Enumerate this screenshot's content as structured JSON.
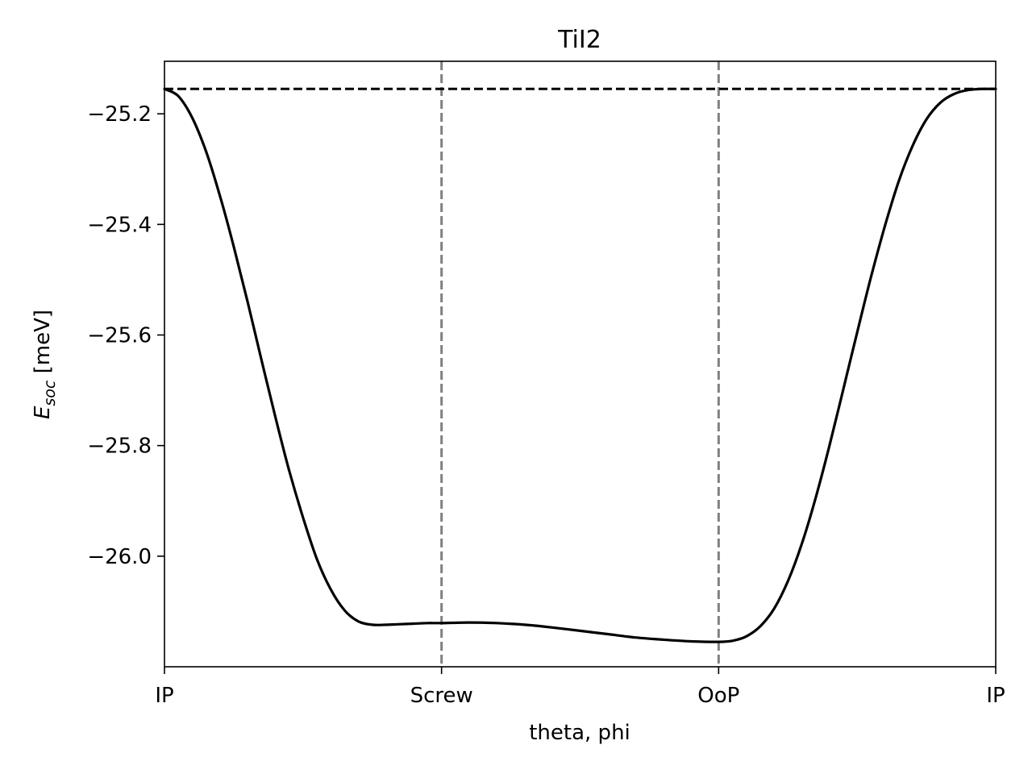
{
  "chart_data": {
    "type": "line",
    "title": "TiI2",
    "xlabel": "theta, phi",
    "ylabel_main": "E",
    "ylabel_sub": "soc",
    "ylabel_unit": " [meV]",
    "xlim": [
      0,
      3
    ],
    "ylim": [
      -26.2,
      -25.105
    ],
    "xticks": [
      {
        "value": 0,
        "label": "IP"
      },
      {
        "value": 1,
        "label": "Screw"
      },
      {
        "value": 2,
        "label": "OoP"
      },
      {
        "value": 3,
        "label": "IP"
      }
    ],
    "yticks": [
      {
        "value": -25.2,
        "label": "−25.2"
      },
      {
        "value": -25.4,
        "label": "−25.4"
      },
      {
        "value": -25.6,
        "label": "−25.6"
      },
      {
        "value": -25.8,
        "label": "−25.8"
      },
      {
        "value": -26.0,
        "label": "−26.0"
      }
    ],
    "reference_line": {
      "y": -25.155,
      "color": "#000000",
      "style": "dashed"
    },
    "vertical_lines": [
      {
        "x": 1,
        "color": "#808080",
        "style": "dashed"
      },
      {
        "x": 2,
        "color": "#808080",
        "style": "dashed"
      }
    ],
    "series": [
      {
        "color": "#000000",
        "x": [
          0,
          0.05,
          0.1,
          0.15,
          0.2,
          0.25,
          0.3,
          0.35,
          0.4,
          0.45,
          0.5,
          0.55,
          0.6,
          0.65,
          0.7,
          0.75,
          0.8,
          0.85,
          0.9,
          0.95,
          1.0,
          1.1,
          1.2,
          1.3,
          1.4,
          1.5,
          1.6,
          1.7,
          1.8,
          1.9,
          2.0,
          2.05,
          2.1,
          2.15,
          2.2,
          2.25,
          2.3,
          2.35,
          2.4,
          2.45,
          2.5,
          2.55,
          2.6,
          2.65,
          2.7,
          2.75,
          2.8,
          2.85,
          2.9,
          2.95,
          3.0
        ],
        "y": [
          -25.155,
          -25.168,
          -25.207,
          -25.268,
          -25.348,
          -25.44,
          -25.54,
          -25.645,
          -25.748,
          -25.845,
          -25.93,
          -26.005,
          -26.06,
          -26.098,
          -26.118,
          -26.124,
          -26.124,
          -26.123,
          -26.122,
          -26.121,
          -26.121,
          -26.12,
          -26.121,
          -26.124,
          -26.129,
          -26.135,
          -26.141,
          -26.147,
          -26.151,
          -26.154,
          -26.155,
          -26.153,
          -26.145,
          -26.127,
          -26.095,
          -26.045,
          -25.978,
          -25.895,
          -25.8,
          -25.698,
          -25.595,
          -25.495,
          -25.403,
          -25.322,
          -25.258,
          -25.21,
          -25.18,
          -25.164,
          -25.157,
          -25.155,
          -25.155
        ]
      }
    ]
  }
}
